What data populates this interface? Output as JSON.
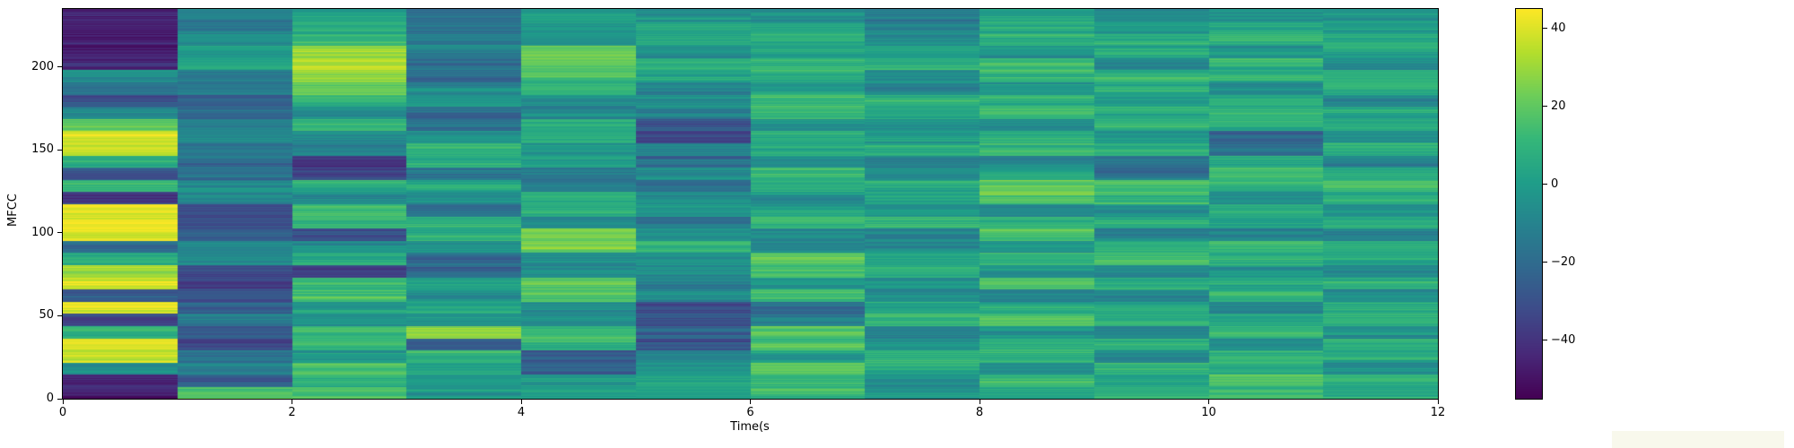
{
  "chart_data": {
    "type": "heatmap",
    "title": "",
    "xlabel": "Time(s",
    "ylabel": "MFCC",
    "x_range": [
      0,
      12
    ],
    "y_range": [
      0,
      235
    ],
    "x_ticks": [
      0,
      2,
      4,
      6,
      8,
      10,
      12
    ],
    "y_ticks": [
      0,
      50,
      100,
      150,
      200
    ],
    "colormap": "viridis",
    "vmin": -55,
    "vmax": 45,
    "colorbar_ticks": [
      40,
      20,
      0,
      -20,
      -40
    ],
    "legend_position": "right-colorbar",
    "grid_lines": false,
    "n_time_columns": 12,
    "n_value_bands": 32,
    "band_order": "top_to_bottom",
    "noise_amplitude": 5,
    "noise_seed": 42,
    "viridis_stops": [
      "#440154",
      "#482878",
      "#3e4a89",
      "#31688e",
      "#26828e",
      "#1f9e89",
      "#35b779",
      "#6dcd59",
      "#b4de2c",
      "#fde725"
    ],
    "grid": [
      [
        -45,
        -48,
        -44,
        -46,
        -42,
        -5,
        -15,
        -30,
        -8,
        20,
        38,
        36,
        5,
        -28,
        10,
        -38,
        40,
        42,
        40,
        -22,
        5,
        30,
        38,
        -28,
        42,
        -32,
        12,
        40,
        38,
        -5,
        -48,
        -50
      ],
      [
        -15,
        -12,
        -8,
        2,
        5,
        -10,
        -12,
        -25,
        -22,
        -10,
        -8,
        -15,
        -20,
        -18,
        -5,
        -8,
        -28,
        -30,
        -25,
        -10,
        -8,
        -32,
        -35,
        -30,
        -22,
        -12,
        -28,
        -30,
        -15,
        -10,
        -25,
        15
      ],
      [
        0,
        5,
        12,
        30,
        32,
        28,
        20,
        10,
        -5,
        12,
        -5,
        -8,
        -40,
        -35,
        8,
        -8,
        12,
        10,
        -30,
        -5,
        8,
        -35,
        10,
        15,
        0,
        -5,
        15,
        12,
        -2,
        15,
        8,
        18
      ],
      [
        -20,
        -18,
        -12,
        -10,
        -18,
        -20,
        -8,
        -5,
        -20,
        -18,
        -2,
        10,
        8,
        -15,
        5,
        -5,
        -18,
        10,
        8,
        -5,
        -20,
        -22,
        0,
        -5,
        5,
        -2,
        25,
        -25,
        12,
        5,
        0,
        -2
      ],
      [
        0,
        -2,
        -5,
        20,
        22,
        15,
        12,
        -5,
        -8,
        12,
        10,
        -2,
        0,
        -18,
        -15,
        10,
        8,
        -5,
        25,
        22,
        -8,
        -5,
        18,
        15,
        -5,
        -8,
        15,
        12,
        -25,
        -22,
        0,
        2
      ],
      [
        -5,
        2,
        5,
        -5,
        8,
        5,
        -8,
        -5,
        -10,
        -30,
        -32,
        -8,
        -20,
        -5,
        -18,
        -8,
        -5,
        -15,
        -5,
        8,
        -5,
        -8,
        -12,
        -8,
        -30,
        -28,
        -22,
        -30,
        -8,
        -5,
        8,
        5
      ],
      [
        -5,
        0,
        8,
        5,
        10,
        8,
        0,
        12,
        10,
        -5,
        8,
        5,
        -8,
        10,
        8,
        -5,
        0,
        10,
        -8,
        -5,
        20,
        18,
        -5,
        12,
        -20,
        -15,
        18,
        15,
        0,
        20,
        15,
        12
      ],
      [
        -15,
        -10,
        -5,
        5,
        8,
        -5,
        -8,
        10,
        8,
        -5,
        0,
        8,
        -12,
        -5,
        8,
        5,
        -5,
        10,
        -10,
        -8,
        5,
        8,
        -5,
        -10,
        5,
        12,
        -8,
        -5,
        10,
        8,
        -5,
        0
      ],
      [
        0,
        5,
        8,
        -5,
        12,
        10,
        -2,
        8,
        15,
        -5,
        5,
        12,
        -8,
        0,
        22,
        20,
        -5,
        8,
        15,
        -2,
        10,
        -5,
        18,
        -8,
        5,
        15,
        -5,
        10,
        8,
        -5,
        12,
        5
      ],
      [
        -5,
        0,
        8,
        5,
        -8,
        10,
        5,
        -5,
        8,
        12,
        -2,
        8,
        -18,
        -15,
        15,
        12,
        -5,
        8,
        -8,
        5,
        15,
        -5,
        8,
        -10,
        5,
        12,
        -5,
        8,
        -8,
        10,
        5,
        8
      ],
      [
        -2,
        5,
        8,
        -5,
        10,
        8,
        -8,
        5,
        12,
        8,
        -20,
        -18,
        5,
        15,
        12,
        -5,
        8,
        5,
        -8,
        12,
        8,
        -5,
        5,
        10,
        -8,
        5,
        12,
        -5,
        8,
        5,
        15,
        10
      ],
      [
        -5,
        2,
        8,
        5,
        -5,
        8,
        5,
        -8,
        5,
        10,
        -5,
        8,
        -12,
        5,
        12,
        8,
        -5,
        5,
        -10,
        8,
        5,
        -5,
        10,
        -8,
        5,
        8,
        -5,
        10,
        5,
        -8,
        8,
        5
      ]
    ]
  }
}
